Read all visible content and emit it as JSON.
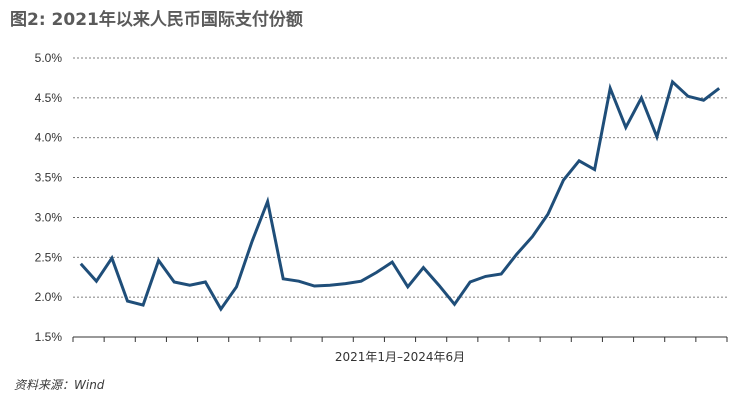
{
  "title": "图2: 2021年以来人民币国际支付份额",
  "source": "资料来源：Wind",
  "chart_data": {
    "type": "line",
    "title": "图2: 2021年以来人民币国际支付份额",
    "xlabel": "2021年1月–2024年6月",
    "ylabel": "",
    "ylim": [
      1.5,
      5.0
    ],
    "yticks": [
      "1.5%",
      "2.0%",
      "2.5%",
      "3.0%",
      "3.5%",
      "4.0%",
      "4.5%",
      "5.0%"
    ],
    "ytick_values": [
      1.5,
      2.0,
      2.5,
      3.0,
      3.5,
      4.0,
      4.5,
      5.0
    ],
    "grid": true,
    "line_color": "#1f4e79",
    "series": [
      {
        "values": [
          2.42,
          2.2,
          2.49,
          1.95,
          1.9,
          2.46,
          2.19,
          2.15,
          2.19,
          1.85,
          2.13,
          2.7,
          3.2,
          2.23,
          2.2,
          2.14,
          2.15,
          2.17,
          2.2,
          2.31,
          2.44,
          2.13,
          2.37,
          2.15,
          1.91,
          2.19,
          2.26,
          2.29,
          2.54,
          2.76,
          3.04,
          3.47,
          3.71,
          3.6,
          4.62,
          4.13,
          4.5,
          4.01,
          4.7,
          4.52,
          4.47,
          4.62
        ]
      }
    ]
  }
}
